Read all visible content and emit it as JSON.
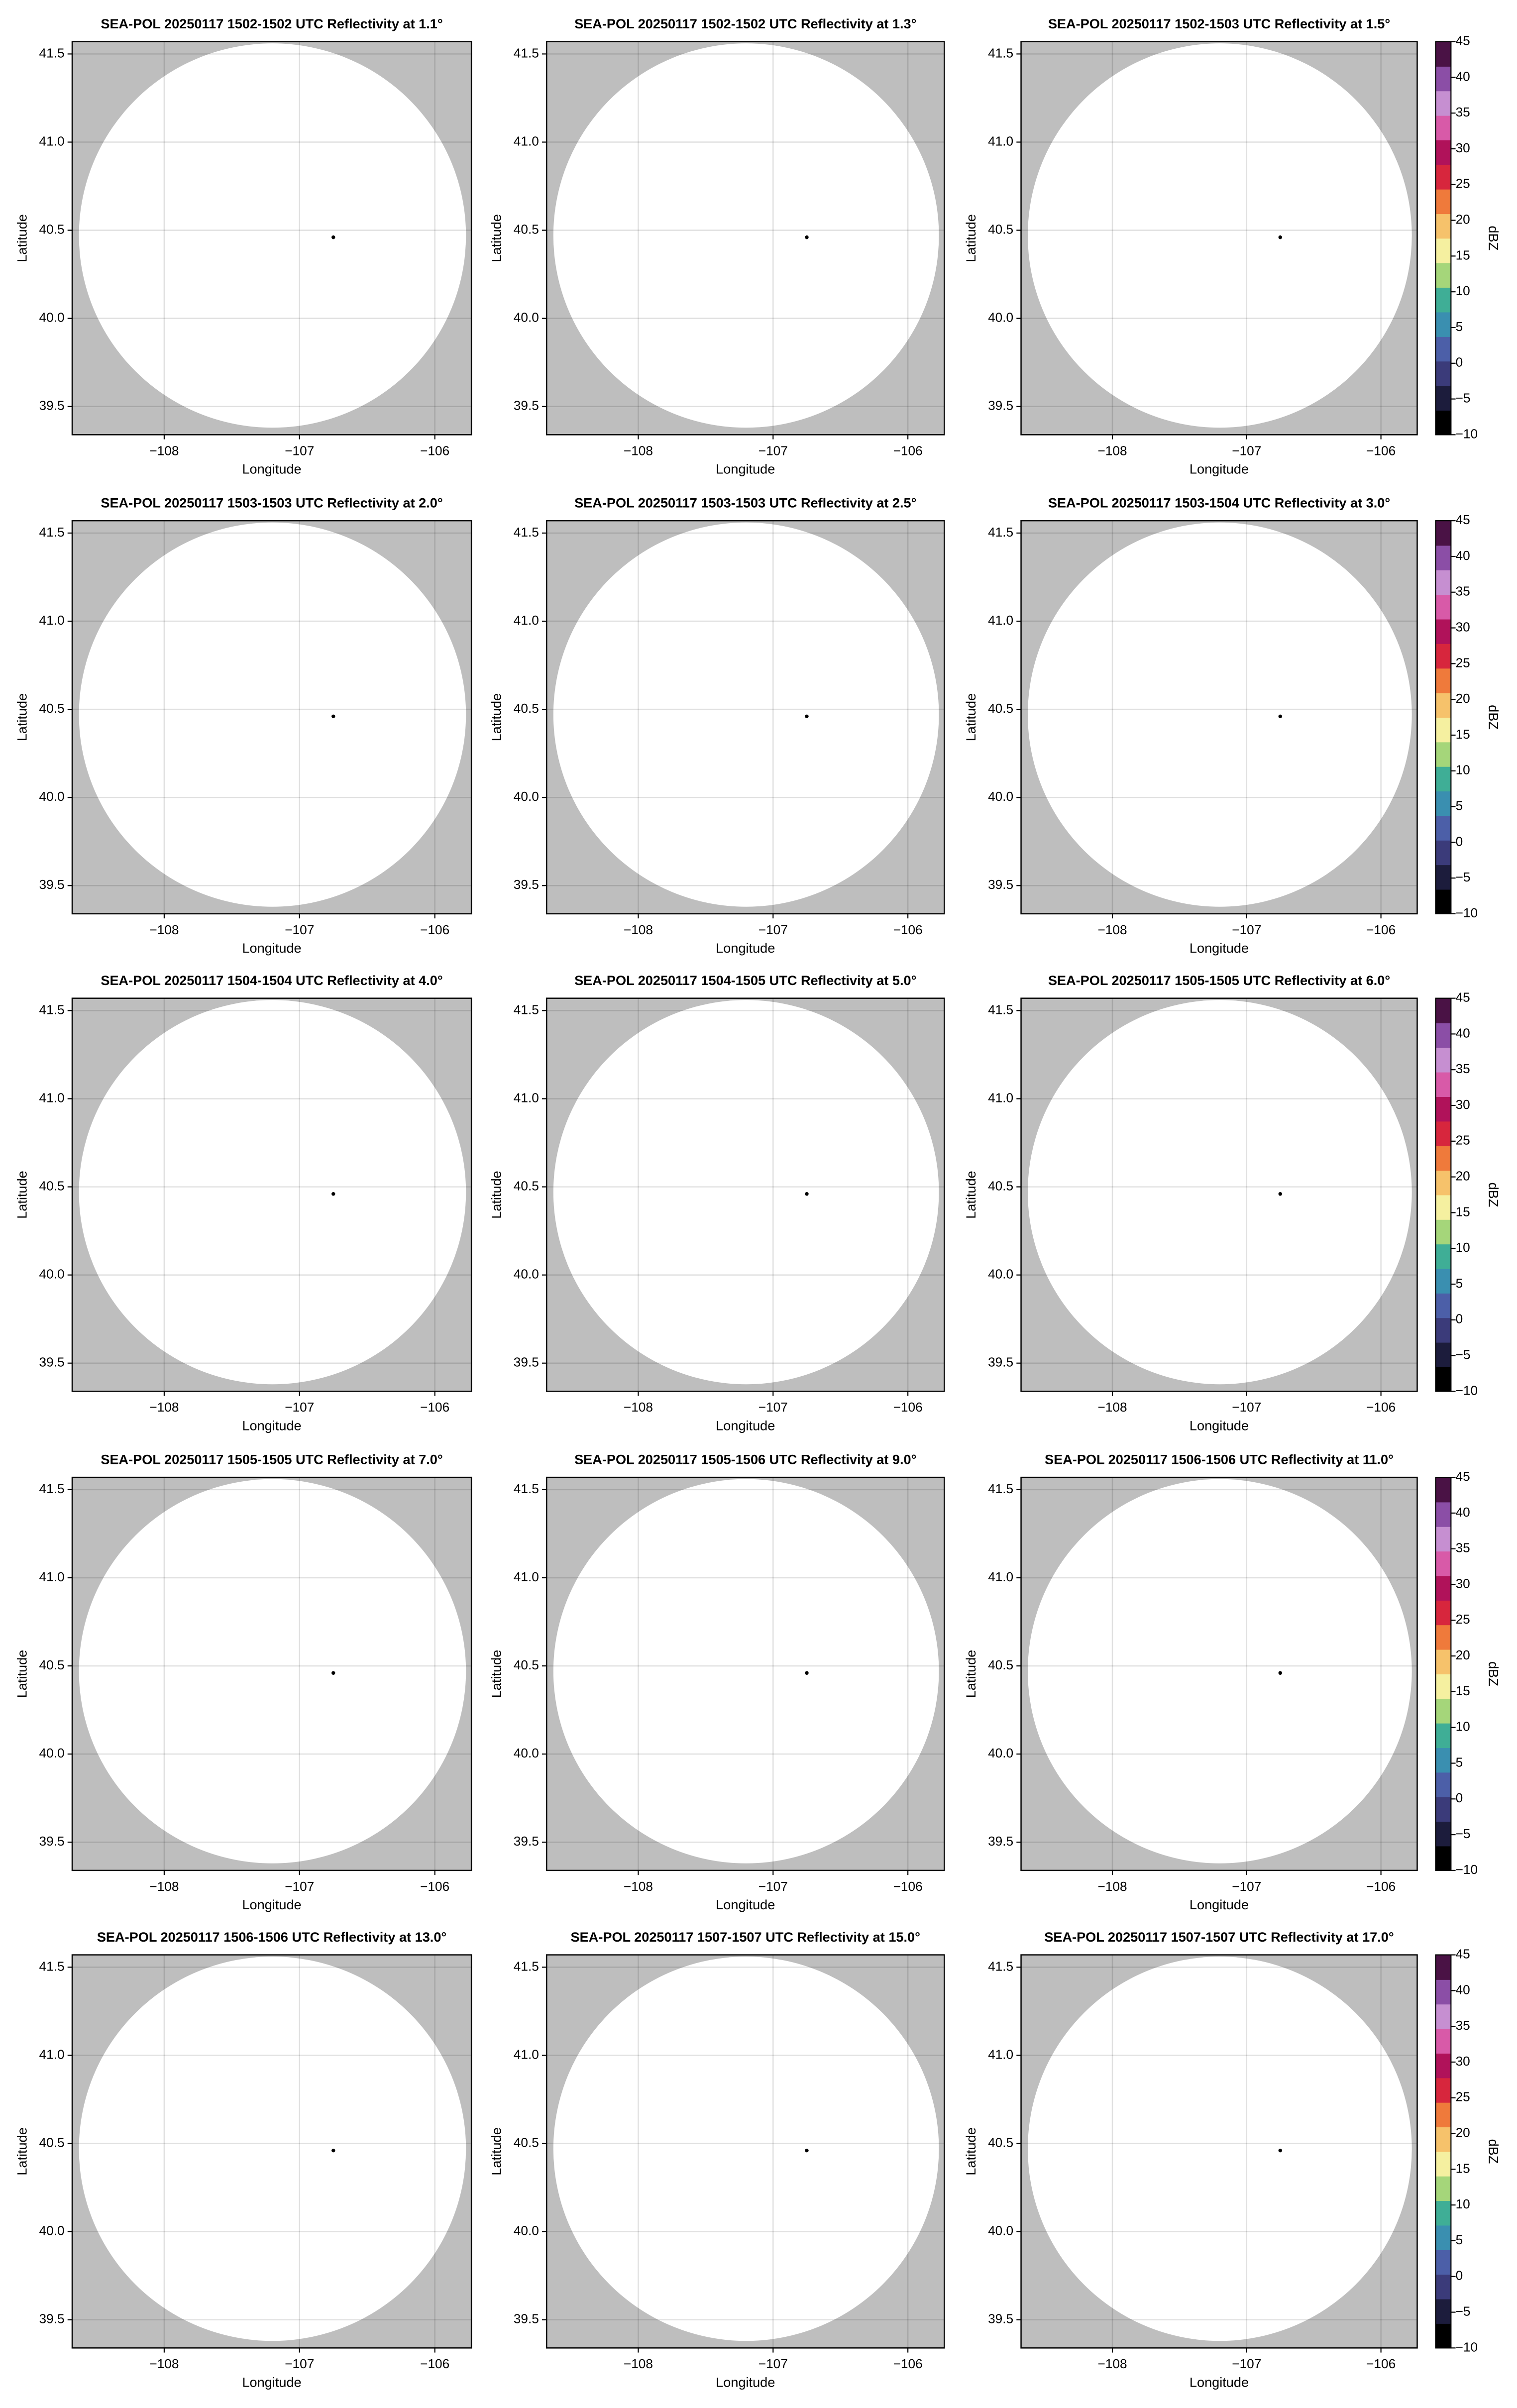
{
  "chart_data": [
    {
      "type": "ppi",
      "title": "SEA-POL 20250117 1502-1502 UTC Reflectivity at 1.1°",
      "xlabel": "Longitude",
      "ylabel": "Latitude",
      "xlim": [
        -108.68,
        -105.73
      ],
      "ylim": [
        39.34,
        41.57
      ],
      "xticks": [
        {
          "value": -108,
          "label": "−108"
        },
        {
          "value": -107,
          "label": "−107"
        },
        {
          "value": -106,
          "label": "−106"
        }
      ],
      "yticks": [
        39.5,
        {
          "value": 40,
          "label": "40.0"
        },
        40.5,
        {
          "value": 41,
          "label": "41.0"
        },
        41.5
      ],
      "grid": true,
      "background": "#bebebe",
      "coverage": {
        "lon": -107.2,
        "lat": 40.47,
        "radius_lon": 1.43,
        "radius_lat": 1.09,
        "color": "#ffffff"
      },
      "radar": {
        "lon": -106.75,
        "lat": 40.46,
        "color": "#000000"
      }
    },
    {
      "type": "ppi",
      "title": "SEA-POL 20250117 1502-1502 UTC Reflectivity at 1.3°",
      "xlabel": "Longitude",
      "ylabel": "Latitude",
      "xlim": [
        -108.68,
        -105.73
      ],
      "ylim": [
        39.34,
        41.57
      ],
      "xticks": [
        {
          "value": -108,
          "label": "−108"
        },
        {
          "value": -107,
          "label": "−107"
        },
        {
          "value": -106,
          "label": "−106"
        }
      ],
      "yticks": [
        39.5,
        {
          "value": 40,
          "label": "40.0"
        },
        40.5,
        {
          "value": 41,
          "label": "41.0"
        },
        41.5
      ],
      "grid": true,
      "background": "#bebebe",
      "coverage": {
        "lon": -107.2,
        "lat": 40.47,
        "radius_lon": 1.43,
        "radius_lat": 1.09,
        "color": "#ffffff"
      },
      "radar": {
        "lon": -106.75,
        "lat": 40.46,
        "color": "#000000"
      }
    },
    {
      "type": "ppi",
      "title": "SEA-POL 20250117 1502-1503 UTC Reflectivity at 1.5°",
      "xlabel": "Longitude",
      "ylabel": "Latitude",
      "xlim": [
        -108.68,
        -105.73
      ],
      "ylim": [
        39.34,
        41.57
      ],
      "xticks": [
        {
          "value": -108,
          "label": "−108"
        },
        {
          "value": -107,
          "label": "−107"
        },
        {
          "value": -106,
          "label": "−106"
        }
      ],
      "yticks": [
        39.5,
        {
          "value": 40,
          "label": "40.0"
        },
        40.5,
        {
          "value": 41,
          "label": "41.0"
        },
        41.5
      ],
      "grid": true,
      "background": "#bebebe",
      "coverage": {
        "lon": -107.2,
        "lat": 40.47,
        "radius_lon": 1.43,
        "radius_lat": 1.09,
        "color": "#ffffff"
      },
      "radar": {
        "lon": -106.75,
        "lat": 40.46,
        "color": "#000000"
      },
      "colorbar": {
        "label": "dBZ",
        "lim": [
          -10,
          45
        ],
        "ticks": [
          {
            "value": -10,
            "label": "−10"
          },
          {
            "value": -5,
            "label": "−5"
          },
          0,
          5,
          10,
          15,
          20,
          25,
          30,
          35,
          40,
          45
        ],
        "colors": [
          "#000000",
          "#1c1c3c",
          "#3b3b7a",
          "#4c5fa8",
          "#3a8fb0",
          "#3fae96",
          "#a5d67a",
          "#f5f0a0",
          "#f6c26b",
          "#ef7a3b",
          "#d7263d",
          "#b0125a",
          "#d85aa8",
          "#c68fd1",
          "#8b4ea6",
          "#4a1245"
        ]
      }
    },
    {
      "type": "ppi",
      "title": "SEA-POL 20250117 1503-1503 UTC Reflectivity at 2.0°",
      "xlabel": "Longitude",
      "ylabel": "Latitude",
      "xlim": [
        -108.68,
        -105.73
      ],
      "ylim": [
        39.34,
        41.57
      ],
      "xticks": [
        {
          "value": -108,
          "label": "−108"
        },
        {
          "value": -107,
          "label": "−107"
        },
        {
          "value": -106,
          "label": "−106"
        }
      ],
      "yticks": [
        39.5,
        {
          "value": 40,
          "label": "40.0"
        },
        40.5,
        {
          "value": 41,
          "label": "41.0"
        },
        41.5
      ],
      "grid": true,
      "background": "#bebebe",
      "coverage": {
        "lon": -107.2,
        "lat": 40.47,
        "radius_lon": 1.43,
        "radius_lat": 1.09,
        "color": "#ffffff"
      },
      "radar": {
        "lon": -106.75,
        "lat": 40.46,
        "color": "#000000"
      }
    },
    {
      "type": "ppi",
      "title": "SEA-POL 20250117 1503-1503 UTC Reflectivity at 2.5°",
      "xlabel": "Longitude",
      "ylabel": "Latitude",
      "xlim": [
        -108.68,
        -105.73
      ],
      "ylim": [
        39.34,
        41.57
      ],
      "xticks": [
        {
          "value": -108,
          "label": "−108"
        },
        {
          "value": -107,
          "label": "−107"
        },
        {
          "value": -106,
          "label": "−106"
        }
      ],
      "yticks": [
        39.5,
        {
          "value": 40,
          "label": "40.0"
        },
        40.5,
        {
          "value": 41,
          "label": "41.0"
        },
        41.5
      ],
      "grid": true,
      "background": "#bebebe",
      "coverage": {
        "lon": -107.2,
        "lat": 40.47,
        "radius_lon": 1.43,
        "radius_lat": 1.09,
        "color": "#ffffff"
      },
      "radar": {
        "lon": -106.75,
        "lat": 40.46,
        "color": "#000000"
      }
    },
    {
      "type": "ppi",
      "title": "SEA-POL 20250117 1503-1504 UTC Reflectivity at 3.0°",
      "xlabel": "Longitude",
      "ylabel": "Latitude",
      "xlim": [
        -108.68,
        -105.73
      ],
      "ylim": [
        39.34,
        41.57
      ],
      "xticks": [
        {
          "value": -108,
          "label": "−108"
        },
        {
          "value": -107,
          "label": "−107"
        },
        {
          "value": -106,
          "label": "−106"
        }
      ],
      "yticks": [
        39.5,
        {
          "value": 40,
          "label": "40.0"
        },
        40.5,
        {
          "value": 41,
          "label": "41.0"
        },
        41.5
      ],
      "grid": true,
      "background": "#bebebe",
      "coverage": {
        "lon": -107.2,
        "lat": 40.47,
        "radius_lon": 1.43,
        "radius_lat": 1.09,
        "color": "#ffffff"
      },
      "radar": {
        "lon": -106.75,
        "lat": 40.46,
        "color": "#000000"
      },
      "colorbar": {
        "label": "dBZ",
        "lim": [
          -10,
          45
        ],
        "ticks": [
          {
            "value": -10,
            "label": "−10"
          },
          {
            "value": -5,
            "label": "−5"
          },
          0,
          5,
          10,
          15,
          20,
          25,
          30,
          35,
          40,
          45
        ],
        "colors": [
          "#000000",
          "#1c1c3c",
          "#3b3b7a",
          "#4c5fa8",
          "#3a8fb0",
          "#3fae96",
          "#a5d67a",
          "#f5f0a0",
          "#f6c26b",
          "#ef7a3b",
          "#d7263d",
          "#b0125a",
          "#d85aa8",
          "#c68fd1",
          "#8b4ea6",
          "#4a1245"
        ]
      }
    },
    {
      "type": "ppi",
      "title": "SEA-POL 20250117 1504-1504 UTC Reflectivity at 4.0°",
      "xlabel": "Longitude",
      "ylabel": "Latitude",
      "xlim": [
        -108.68,
        -105.73
      ],
      "ylim": [
        39.34,
        41.57
      ],
      "xticks": [
        {
          "value": -108,
          "label": "−108"
        },
        {
          "value": -107,
          "label": "−107"
        },
        {
          "value": -106,
          "label": "−106"
        }
      ],
      "yticks": [
        39.5,
        {
          "value": 40,
          "label": "40.0"
        },
        40.5,
        {
          "value": 41,
          "label": "41.0"
        },
        41.5
      ],
      "grid": true,
      "background": "#bebebe",
      "coverage": {
        "lon": -107.2,
        "lat": 40.47,
        "radius_lon": 1.43,
        "radius_lat": 1.09,
        "color": "#ffffff"
      },
      "radar": {
        "lon": -106.75,
        "lat": 40.46,
        "color": "#000000"
      }
    },
    {
      "type": "ppi",
      "title": "SEA-POL 20250117 1504-1505 UTC Reflectivity at 5.0°",
      "xlabel": "Longitude",
      "ylabel": "Latitude",
      "xlim": [
        -108.68,
        -105.73
      ],
      "ylim": [
        39.34,
        41.57
      ],
      "xticks": [
        {
          "value": -108,
          "label": "−108"
        },
        {
          "value": -107,
          "label": "−107"
        },
        {
          "value": -106,
          "label": "−106"
        }
      ],
      "yticks": [
        39.5,
        {
          "value": 40,
          "label": "40.0"
        },
        40.5,
        {
          "value": 41,
          "label": "41.0"
        },
        41.5
      ],
      "grid": true,
      "background": "#bebebe",
      "coverage": {
        "lon": -107.2,
        "lat": 40.47,
        "radius_lon": 1.43,
        "radius_lat": 1.09,
        "color": "#ffffff"
      },
      "radar": {
        "lon": -106.75,
        "lat": 40.46,
        "color": "#000000"
      }
    },
    {
      "type": "ppi",
      "title": "SEA-POL 20250117 1505-1505 UTC Reflectivity at 6.0°",
      "xlabel": "Longitude",
      "ylabel": "Latitude",
      "xlim": [
        -108.68,
        -105.73
      ],
      "ylim": [
        39.34,
        41.57
      ],
      "xticks": [
        {
          "value": -108,
          "label": "−108"
        },
        {
          "value": -107,
          "label": "−107"
        },
        {
          "value": -106,
          "label": "−106"
        }
      ],
      "yticks": [
        39.5,
        {
          "value": 40,
          "label": "40.0"
        },
        40.5,
        {
          "value": 41,
          "label": "41.0"
        },
        41.5
      ],
      "grid": true,
      "background": "#bebebe",
      "coverage": {
        "lon": -107.2,
        "lat": 40.47,
        "radius_lon": 1.43,
        "radius_lat": 1.09,
        "color": "#ffffff"
      },
      "radar": {
        "lon": -106.75,
        "lat": 40.46,
        "color": "#000000"
      },
      "colorbar": {
        "label": "dBZ",
        "lim": [
          -10,
          45
        ],
        "ticks": [
          {
            "value": -10,
            "label": "−10"
          },
          {
            "value": -5,
            "label": "−5"
          },
          0,
          5,
          10,
          15,
          20,
          25,
          30,
          35,
          40,
          45
        ],
        "colors": [
          "#000000",
          "#1c1c3c",
          "#3b3b7a",
          "#4c5fa8",
          "#3a8fb0",
          "#3fae96",
          "#a5d67a",
          "#f5f0a0",
          "#f6c26b",
          "#ef7a3b",
          "#d7263d",
          "#b0125a",
          "#d85aa8",
          "#c68fd1",
          "#8b4ea6",
          "#4a1245"
        ]
      }
    },
    {
      "type": "ppi",
      "title": "SEA-POL 20250117 1505-1505 UTC Reflectivity at 7.0°",
      "xlabel": "Longitude",
      "ylabel": "Latitude",
      "xlim": [
        -108.68,
        -105.73
      ],
      "ylim": [
        39.34,
        41.57
      ],
      "xticks": [
        {
          "value": -108,
          "label": "−108"
        },
        {
          "value": -107,
          "label": "−107"
        },
        {
          "value": -106,
          "label": "−106"
        }
      ],
      "yticks": [
        39.5,
        {
          "value": 40,
          "label": "40.0"
        },
        40.5,
        {
          "value": 41,
          "label": "41.0"
        },
        41.5
      ],
      "grid": true,
      "background": "#bebebe",
      "coverage": {
        "lon": -107.2,
        "lat": 40.47,
        "radius_lon": 1.43,
        "radius_lat": 1.09,
        "color": "#ffffff"
      },
      "radar": {
        "lon": -106.75,
        "lat": 40.46,
        "color": "#000000"
      }
    },
    {
      "type": "ppi",
      "title": "SEA-POL 20250117 1505-1506 UTC Reflectivity at 9.0°",
      "xlabel": "Longitude",
      "ylabel": "Latitude",
      "xlim": [
        -108.68,
        -105.73
      ],
      "ylim": [
        39.34,
        41.57
      ],
      "xticks": [
        {
          "value": -108,
          "label": "−108"
        },
        {
          "value": -107,
          "label": "−107"
        },
        {
          "value": -106,
          "label": "−106"
        }
      ],
      "yticks": [
        39.5,
        {
          "value": 40,
          "label": "40.0"
        },
        40.5,
        {
          "value": 41,
          "label": "41.0"
        },
        41.5
      ],
      "grid": true,
      "background": "#bebebe",
      "coverage": {
        "lon": -107.2,
        "lat": 40.47,
        "radius_lon": 1.43,
        "radius_lat": 1.09,
        "color": "#ffffff"
      },
      "radar": {
        "lon": -106.75,
        "lat": 40.46,
        "color": "#000000"
      }
    },
    {
      "type": "ppi",
      "title": "SEA-POL 20250117 1506-1506 UTC Reflectivity at 11.0°",
      "xlabel": "Longitude",
      "ylabel": "Latitude",
      "xlim": [
        -108.68,
        -105.73
      ],
      "ylim": [
        39.34,
        41.57
      ],
      "xticks": [
        {
          "value": -108,
          "label": "−108"
        },
        {
          "value": -107,
          "label": "−107"
        },
        {
          "value": -106,
          "label": "−106"
        }
      ],
      "yticks": [
        39.5,
        {
          "value": 40,
          "label": "40.0"
        },
        40.5,
        {
          "value": 41,
          "label": "41.0"
        },
        41.5
      ],
      "grid": true,
      "background": "#bebebe",
      "coverage": {
        "lon": -107.2,
        "lat": 40.47,
        "radius_lon": 1.43,
        "radius_lat": 1.09,
        "color": "#ffffff"
      },
      "radar": {
        "lon": -106.75,
        "lat": 40.46,
        "color": "#000000"
      },
      "colorbar": {
        "label": "dBZ",
        "lim": [
          -10,
          45
        ],
        "ticks": [
          {
            "value": -10,
            "label": "−10"
          },
          {
            "value": -5,
            "label": "−5"
          },
          0,
          5,
          10,
          15,
          20,
          25,
          30,
          35,
          40,
          45
        ],
        "colors": [
          "#000000",
          "#1c1c3c",
          "#3b3b7a",
          "#4c5fa8",
          "#3a8fb0",
          "#3fae96",
          "#a5d67a",
          "#f5f0a0",
          "#f6c26b",
          "#ef7a3b",
          "#d7263d",
          "#b0125a",
          "#d85aa8",
          "#c68fd1",
          "#8b4ea6",
          "#4a1245"
        ]
      }
    },
    {
      "type": "ppi",
      "title": "SEA-POL 20250117 1506-1506 UTC Reflectivity at 13.0°",
      "xlabel": "Longitude",
      "ylabel": "Latitude",
      "xlim": [
        -108.68,
        -105.73
      ],
      "ylim": [
        39.34,
        41.57
      ],
      "xticks": [
        {
          "value": -108,
          "label": "−108"
        },
        {
          "value": -107,
          "label": "−107"
        },
        {
          "value": -106,
          "label": "−106"
        }
      ],
      "yticks": [
        39.5,
        {
          "value": 40,
          "label": "40.0"
        },
        40.5,
        {
          "value": 41,
          "label": "41.0"
        },
        41.5
      ],
      "grid": true,
      "background": "#bebebe",
      "coverage": {
        "lon": -107.2,
        "lat": 40.47,
        "radius_lon": 1.43,
        "radius_lat": 1.09,
        "color": "#ffffff"
      },
      "radar": {
        "lon": -106.75,
        "lat": 40.46,
        "color": "#000000"
      }
    },
    {
      "type": "ppi",
      "title": "SEA-POL 20250117 1507-1507 UTC Reflectivity at 15.0°",
      "xlabel": "Longitude",
      "ylabel": "Latitude",
      "xlim": [
        -108.68,
        -105.73
      ],
      "ylim": [
        39.34,
        41.57
      ],
      "xticks": [
        {
          "value": -108,
          "label": "−108"
        },
        {
          "value": -107,
          "label": "−107"
        },
        {
          "value": -106,
          "label": "−106"
        }
      ],
      "yticks": [
        39.5,
        {
          "value": 40,
          "label": "40.0"
        },
        40.5,
        {
          "value": 41,
          "label": "41.0"
        },
        41.5
      ],
      "grid": true,
      "background": "#bebebe",
      "coverage": {
        "lon": -107.2,
        "lat": 40.47,
        "radius_lon": 1.43,
        "radius_lat": 1.09,
        "color": "#ffffff"
      },
      "radar": {
        "lon": -106.75,
        "lat": 40.46,
        "color": "#000000"
      }
    },
    {
      "type": "ppi",
      "title": "SEA-POL 20250117 1507-1507 UTC Reflectivity at 17.0°",
      "xlabel": "Longitude",
      "ylabel": "Latitude",
      "xlim": [
        -108.68,
        -105.73
      ],
      "ylim": [
        39.34,
        41.57
      ],
      "xticks": [
        {
          "value": -108,
          "label": "−108"
        },
        {
          "value": -107,
          "label": "−107"
        },
        {
          "value": -106,
          "label": "−106"
        }
      ],
      "yticks": [
        39.5,
        {
          "value": 40,
          "label": "40.0"
        },
        40.5,
        {
          "value": 41,
          "label": "41.0"
        },
        41.5
      ],
      "grid": true,
      "background": "#bebebe",
      "coverage": {
        "lon": -107.2,
        "lat": 40.47,
        "radius_lon": 1.43,
        "radius_lat": 1.09,
        "color": "#ffffff"
      },
      "radar": {
        "lon": -106.75,
        "lat": 40.46,
        "color": "#000000"
      },
      "colorbar": {
        "label": "dBZ",
        "lim": [
          -10,
          45
        ],
        "ticks": [
          {
            "value": -10,
            "label": "−10"
          },
          {
            "value": -5,
            "label": "−5"
          },
          0,
          5,
          10,
          15,
          20,
          25,
          30,
          35,
          40,
          45
        ],
        "colors": [
          "#000000",
          "#1c1c3c",
          "#3b3b7a",
          "#4c5fa8",
          "#3a8fb0",
          "#3fae96",
          "#a5d67a",
          "#f5f0a0",
          "#f6c26b",
          "#ef7a3b",
          "#d7263d",
          "#b0125a",
          "#d85aa8",
          "#c68fd1",
          "#8b4ea6",
          "#4a1245"
        ]
      }
    }
  ]
}
